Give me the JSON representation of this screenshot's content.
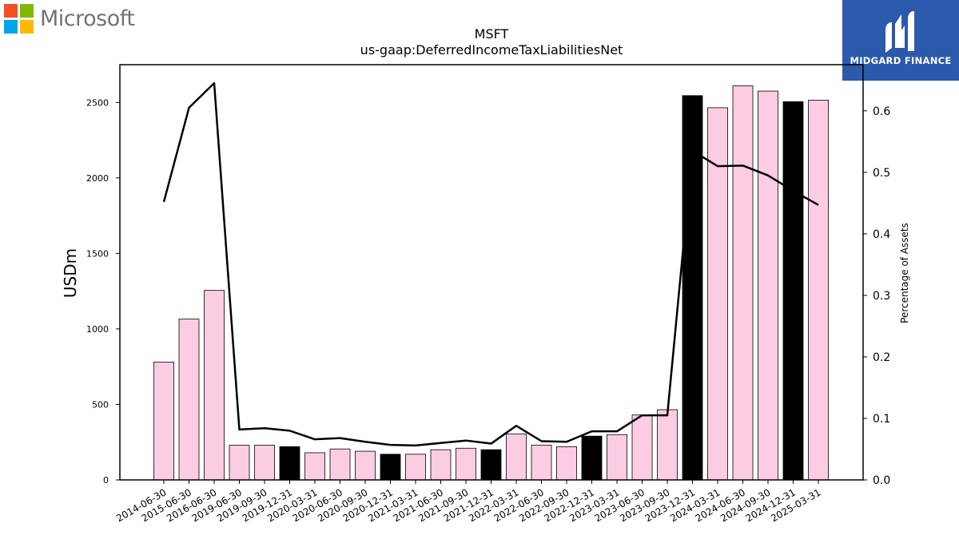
{
  "logo_left": {
    "text": "Microsoft",
    "colors": [
      "#f25022",
      "#7fba00",
      "#00a4ef",
      "#ffb900"
    ]
  },
  "logo_right": {
    "text": "MIDGARD FINANCE",
    "background": "#2b5aad",
    "icon": "midgard-m-icon"
  },
  "chart_data": {
    "type": "bar",
    "title": "MSFT",
    "subtitle": "us-gaap:DeferredIncomeTaxLiabilitiesNet",
    "ylabel": "USDm",
    "y2label": "Percentage of Assets",
    "ylim": [
      0,
      2750
    ],
    "y2lim": [
      0,
      0.675
    ],
    "yticks": [
      0,
      500,
      1000,
      1500,
      2000,
      2500
    ],
    "y2ticks": [
      0.0,
      0.1,
      0.2,
      0.3,
      0.4,
      0.5,
      0.6
    ],
    "categories": [
      "2014-06-30",
      "2015-06-30",
      "2016-06-30",
      "2019-06-30",
      "2019-09-30",
      "2019-12-31",
      "2020-03-31",
      "2020-06-30",
      "2020-09-30",
      "2020-12-31",
      "2021-03-31",
      "2021-06-30",
      "2021-09-30",
      "2021-12-31",
      "2022-03-31",
      "2022-06-30",
      "2022-09-30",
      "2022-12-31",
      "2023-03-31",
      "2023-06-30",
      "2023-09-30",
      "2023-12-31",
      "2024-03-31",
      "2024-06-30",
      "2024-09-30",
      "2024-12-31",
      "2025-03-31"
    ],
    "values": [
      780,
      1065,
      1255,
      230,
      230,
      220,
      180,
      205,
      190,
      170,
      170,
      200,
      210,
      200,
      305,
      230,
      220,
      290,
      300,
      430,
      465,
      2545,
      2465,
      2610,
      2575,
      2505,
      2515
    ],
    "highlight": [
      false,
      false,
      false,
      false,
      false,
      true,
      false,
      false,
      false,
      true,
      false,
      false,
      false,
      true,
      false,
      false,
      false,
      true,
      false,
      false,
      false,
      true,
      false,
      false,
      false,
      true,
      false
    ],
    "bar_color": "#fccce3",
    "highlight_color": "#000000",
    "line": {
      "name": "Percentage of Assets",
      "color": "#000000",
      "values": [
        0.452,
        0.605,
        0.645,
        0.082,
        0.084,
        0.08,
        0.066,
        0.068,
        0.062,
        0.057,
        0.056,
        0.06,
        0.064,
        0.059,
        0.088,
        0.063,
        0.062,
        0.079,
        0.079,
        0.105,
        0.105,
        0.535,
        0.51,
        0.511,
        0.495,
        0.47,
        0.447
      ]
    },
    "grid": false,
    "legend": "none"
  }
}
